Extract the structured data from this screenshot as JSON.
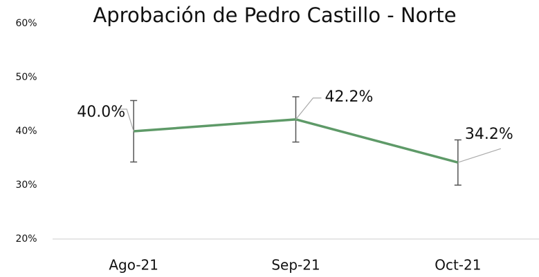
{
  "chart_data": {
    "type": "line",
    "title": "Aprobación de Pedro Castillo - Norte",
    "categories": [
      "Ago-21",
      "Sep-21",
      "Oct-21"
    ],
    "series": [
      {
        "color": "#5e9a68",
        "values": [
          40.0,
          42.2,
          34.2
        ],
        "value_labels": [
          "40.0%",
          "42.2%",
          "34.2%"
        ],
        "errors": [
          5.7,
          4.2,
          4.2
        ]
      }
    ],
    "ylim": [
      20,
      60
    ],
    "yticks": [
      {
        "value": 20,
        "label": "20%"
      },
      {
        "value": 30,
        "label": "30%"
      },
      {
        "value": 40,
        "label": "40%"
      },
      {
        "value": 50,
        "label": "50%"
      },
      {
        "value": 60,
        "label": "60%"
      }
    ],
    "grid": false
  }
}
